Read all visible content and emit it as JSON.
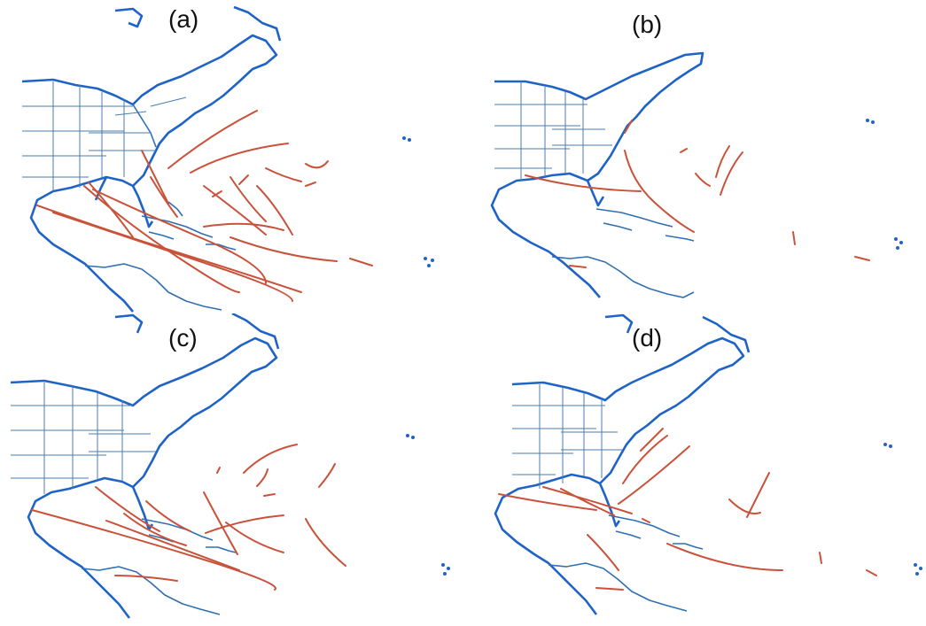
{
  "figure": {
    "panels": [
      {
        "id": "a",
        "label": "(a)"
      },
      {
        "id": "b",
        "label": "(b)"
      },
      {
        "id": "c",
        "label": "(c)"
      },
      {
        "id": "d",
        "label": "(d)"
      }
    ]
  },
  "colors": {
    "coastline": "#1f63c6",
    "state_borders": "#4a7cb3",
    "storm_tracks": "#c9523a",
    "background": "#ffffff"
  }
}
